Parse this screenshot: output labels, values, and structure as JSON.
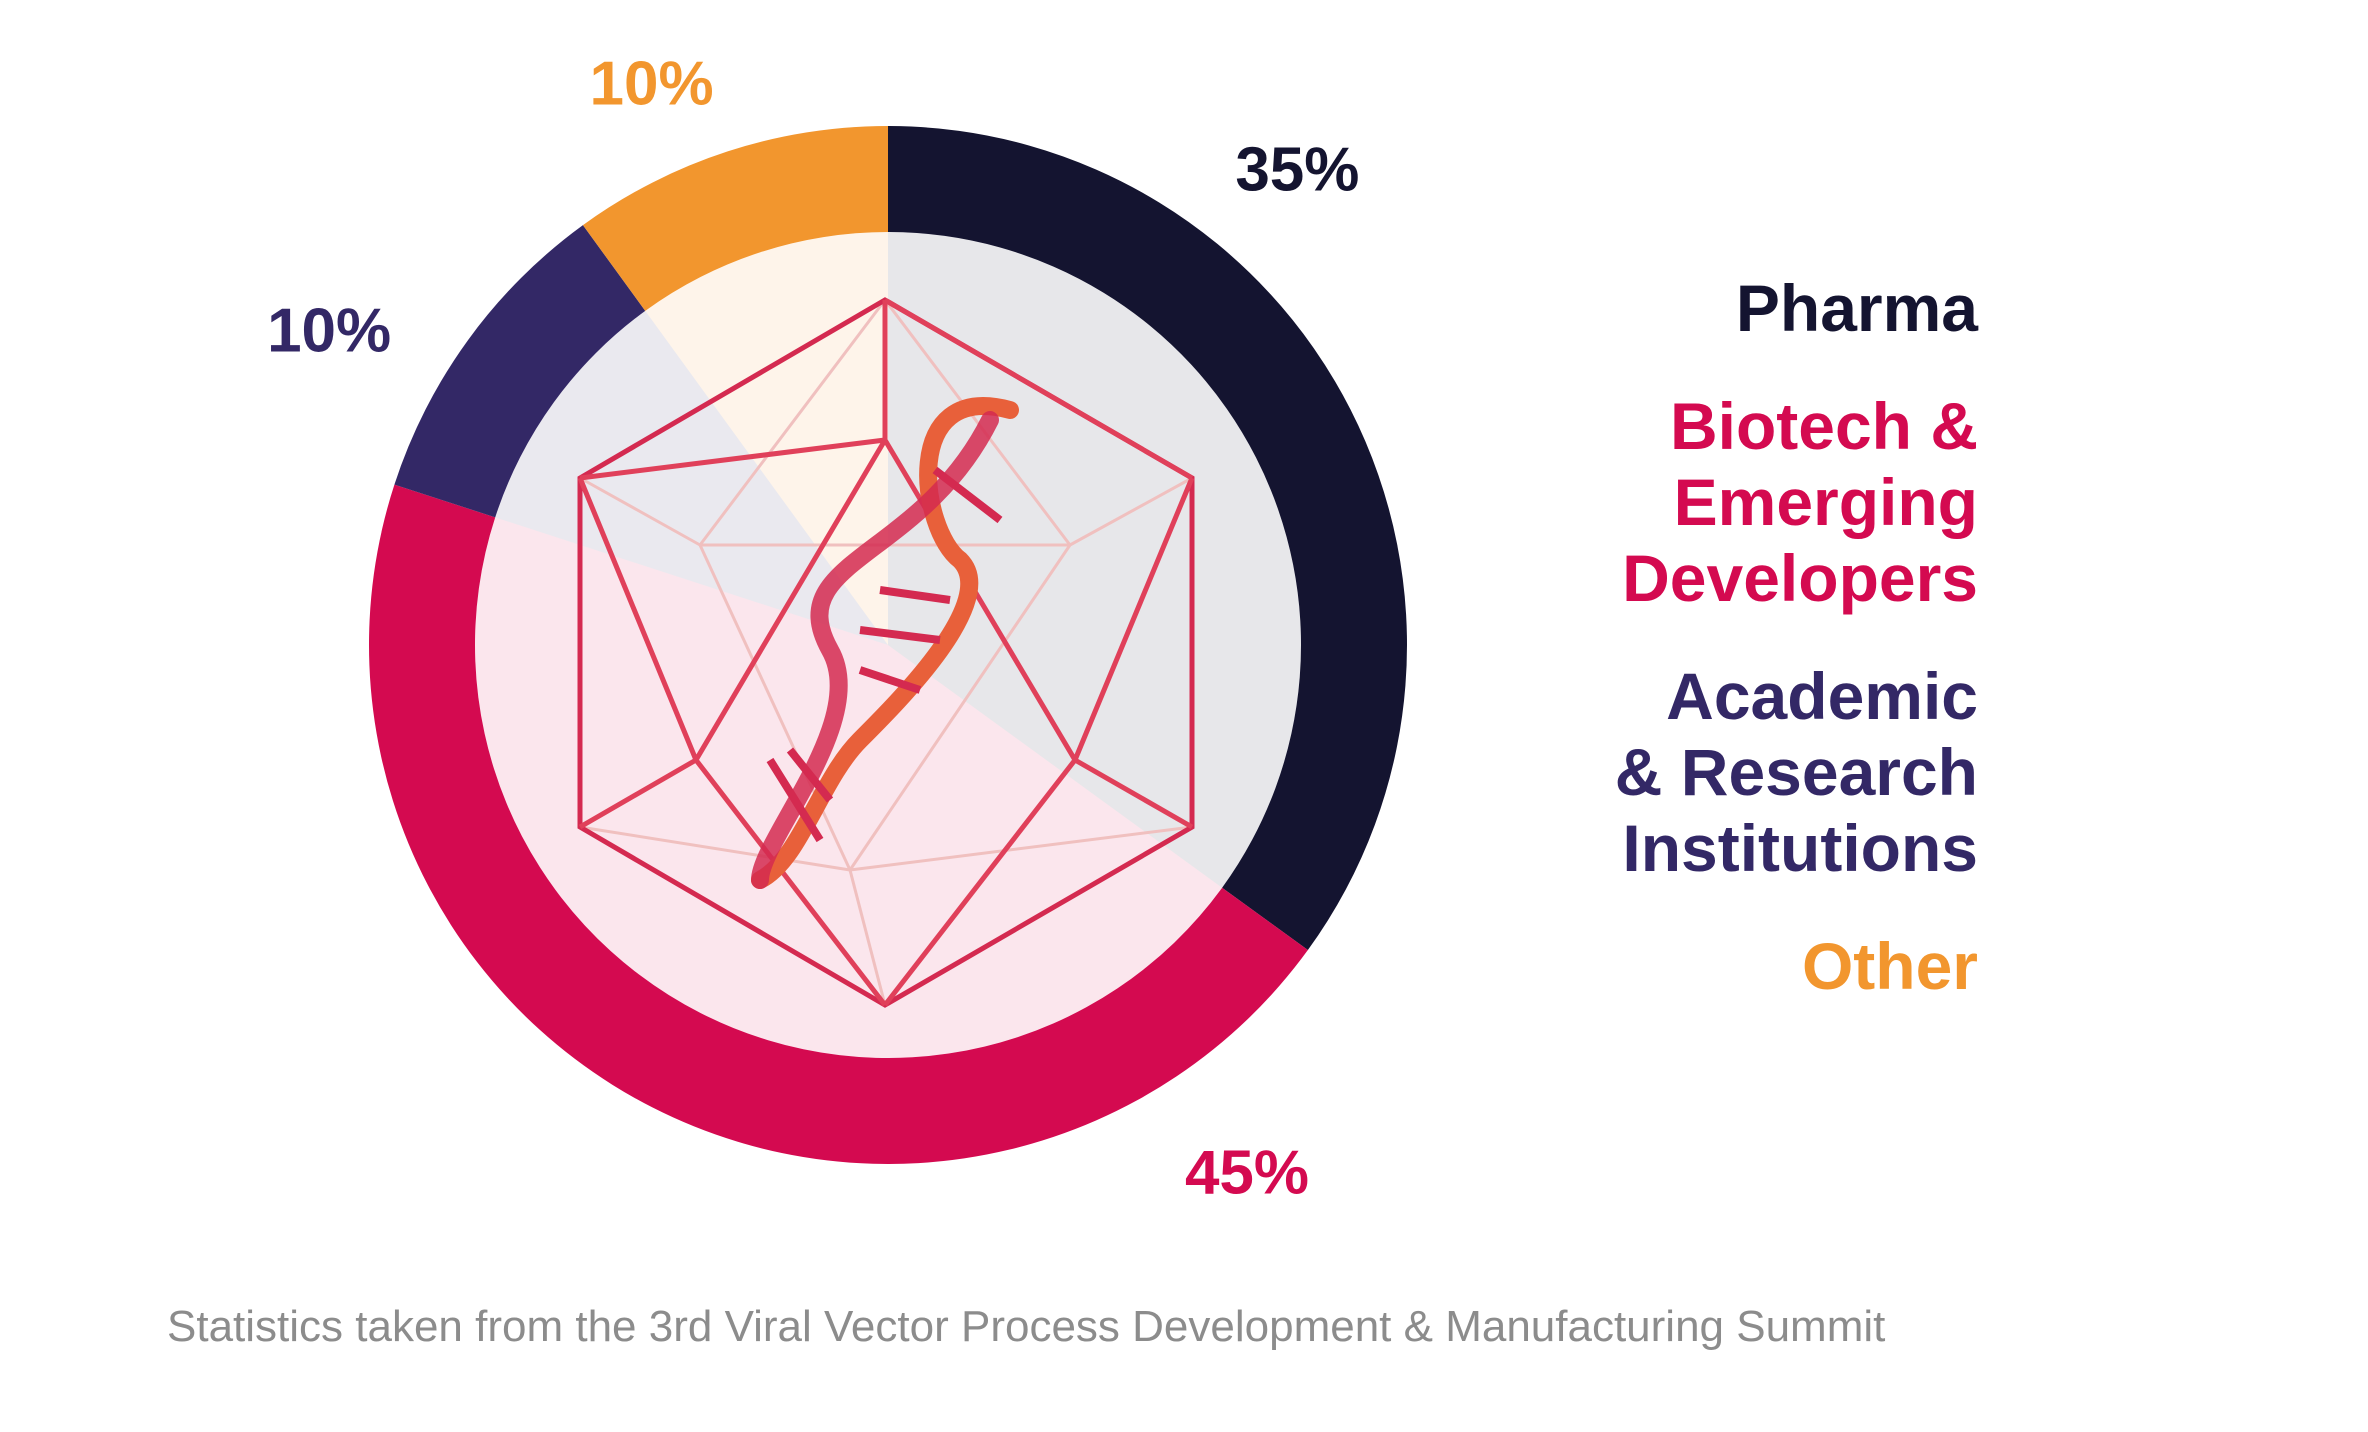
{
  "chart_data": {
    "type": "donut",
    "categories": [
      "Pharma",
      "Biotech & Emerging Developers",
      "Academic & Research Institutions",
      "Other"
    ],
    "values": [
      35,
      45,
      10,
      10
    ],
    "value_labels": [
      "35%",
      "45%",
      "10%",
      "10%"
    ],
    "colors": [
      "#141430",
      "#d40a50",
      "#332866",
      "#f2962e"
    ],
    "footnote": "Statistics taken from the 3rd Viral Vector Process Development & Manufacturing Summit"
  }
}
